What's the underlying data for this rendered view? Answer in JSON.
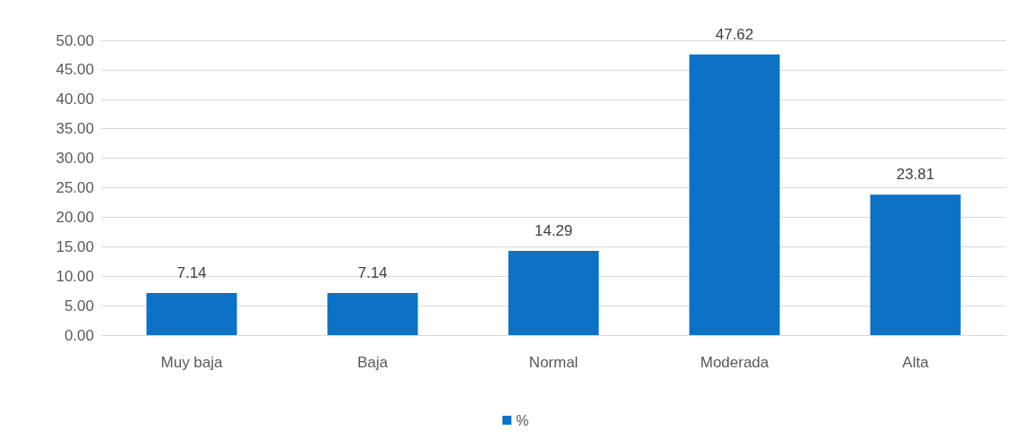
{
  "chart_data": {
    "type": "bar",
    "categories": [
      "Muy baja",
      "Baja",
      "Normal",
      "Moderada",
      "Alta"
    ],
    "series": [
      {
        "name": "%",
        "color": "#0b72c6",
        "values": [
          7.14,
          7.14,
          14.29,
          47.62,
          23.81
        ]
      }
    ],
    "ylim": [
      0,
      50
    ],
    "yticks": [
      {
        "value": 0,
        "label": "0.00"
      },
      {
        "value": 5,
        "label": "5.00"
      },
      {
        "value": 10,
        "label": "10.00"
      },
      {
        "value": 15,
        "label": "15.00"
      },
      {
        "value": 20,
        "label": "20.00"
      },
      {
        "value": 25,
        "label": "25.00"
      },
      {
        "value": 30,
        "label": "30.00"
      },
      {
        "value": 35,
        "label": "35.00"
      },
      {
        "value": 40,
        "label": "40.00"
      },
      {
        "value": 45,
        "label": "45.00"
      },
      {
        "value": 50,
        "label": "50.00"
      }
    ],
    "grid": "y",
    "data_labels": true,
    "legend": "bottom"
  }
}
